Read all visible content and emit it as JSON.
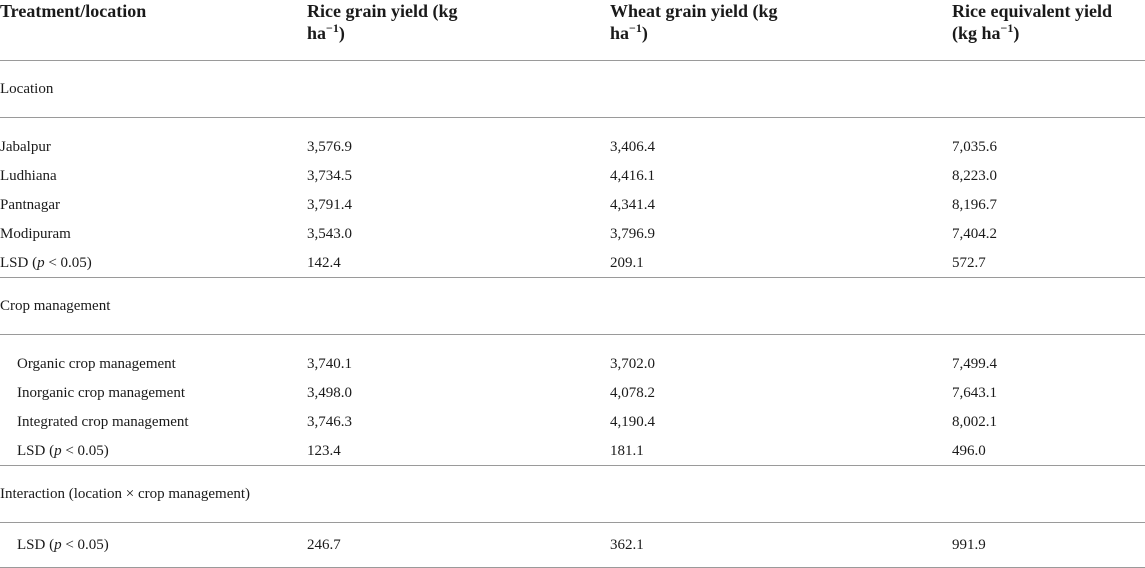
{
  "headers": {
    "col1": "Treatment/location",
    "col2_line1": "Rice grain yield (kg",
    "col2_unit": "ha",
    "col2_sup": "−1",
    "col2_close": ")",
    "col3_line1": "Wheat grain yield (kg",
    "col3_unit": "ha",
    "col3_sup": "−1",
    "col3_close": ")",
    "col4_line1": "Rice equivalent yield",
    "col4_unit": "(kg ha",
    "col4_sup": "−1",
    "col4_close": ")"
  },
  "sections": {
    "location": "Location",
    "crop": "Crop management",
    "interaction": "Interaction (location × crop management)"
  },
  "lsd": {
    "prefix": "LSD (",
    "p": "p",
    "suffix": " < 0.05)"
  },
  "rows": {
    "jabalpur": {
      "label": "Jabalpur",
      "rice": "3,576.9",
      "wheat": "3,406.4",
      "equiv": "7,035.6"
    },
    "ludhiana": {
      "label": "Ludhiana",
      "rice": "3,734.5",
      "wheat": "4,416.1",
      "equiv": "8,223.0"
    },
    "pantnagar": {
      "label": "Pantnagar",
      "rice": "3,791.4",
      "wheat": "4,341.4",
      "equiv": "8,196.7"
    },
    "modipuram": {
      "label": "Modipuram",
      "rice": "3,543.0",
      "wheat": "3,796.9",
      "equiv": "7,404.2"
    },
    "lsd_location": {
      "rice": "142.4",
      "wheat": "209.1",
      "equiv": "572.7"
    },
    "organic": {
      "label": "Organic crop management",
      "rice": "3,740.1",
      "wheat": "3,702.0",
      "equiv": "7,499.4"
    },
    "inorganic": {
      "label": "Inorganic crop management",
      "rice": "3,498.0",
      "wheat": "4,078.2",
      "equiv": "7,643.1"
    },
    "integrated": {
      "label": "Integrated crop management",
      "rice": "3,746.3",
      "wheat": "4,190.4",
      "equiv": "8,002.1"
    },
    "lsd_crop": {
      "rice": "123.4",
      "wheat": "181.1",
      "equiv": "496.0"
    },
    "lsd_interaction": {
      "rice": "246.7",
      "wheat": "362.1",
      "equiv": "991.9"
    }
  }
}
